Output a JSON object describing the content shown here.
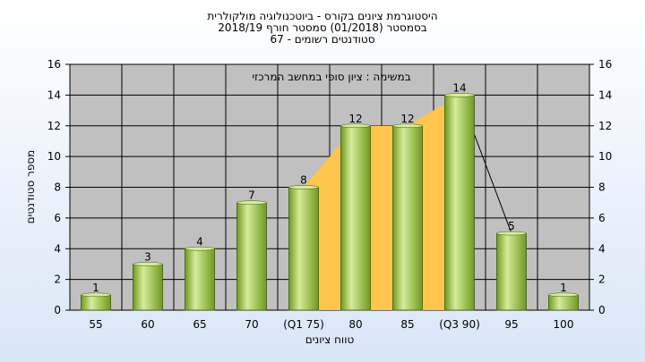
{
  "chart_data": {
    "type": "bar",
    "title_lines": [
      "היסטוגרמת ציונים בקורס - ביוטכנולוגיה מולקולרית",
      "בסמסטר (01/2018) סמסטר חורף 2018/19",
      "סטודנטים רשומים - 67"
    ],
    "annotation": "במשימה : ציון סופי במחשב המרכזי",
    "xlabel": "טווח ציונים",
    "ylabel": "מספר סטודנטים",
    "categories": [
      "55",
      "60",
      "65",
      "70",
      "(Q1 75)",
      "80",
      "85",
      "(Q3 90)",
      "95",
      "100"
    ],
    "values": [
      1,
      3,
      4,
      7,
      8,
      12,
      12,
      14,
      5,
      1
    ],
    "ylim": [
      0,
      16
    ],
    "yticks": [
      0,
      2,
      4,
      6,
      8,
      10,
      12,
      14,
      16
    ],
    "interquartile_range": [
      "(Q1 75)",
      "(Q3 90)"
    ],
    "grid": true,
    "colors": {
      "bar_light": "#d6ec9a",
      "bar_dark": "#6e9a1e",
      "bar_stroke": "#3f5a12",
      "plot_bg": "#c0c0c0",
      "iqr_fill": "#ffc54d",
      "grid": "#000000"
    }
  }
}
